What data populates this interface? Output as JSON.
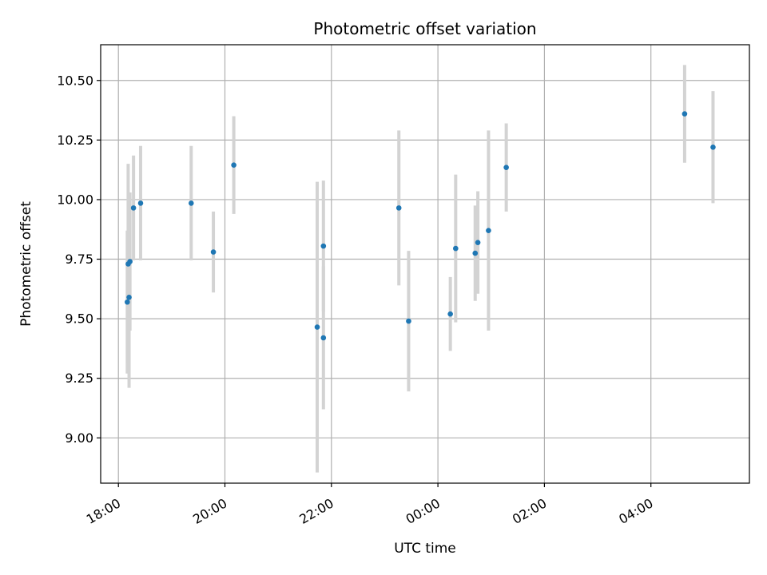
{
  "chart_data": {
    "type": "scatter",
    "title": "Photometric offset variation",
    "xlabel": "UTC time",
    "ylabel": "Photometric offset",
    "grid": true,
    "x_is_time": true,
    "xlim": [
      "17:40",
      "05:51"
    ],
    "ylim": [
      8.81,
      10.65
    ],
    "x_ticks": [
      "18:00",
      "20:00",
      "22:00",
      "00:00",
      "02:00",
      "04:00"
    ],
    "y_ticks": [
      "9.00",
      "9.25",
      "9.50",
      "9.75",
      "10.00",
      "10.25",
      "10.50"
    ],
    "colors": {
      "point": "#1f77b4",
      "errorbar": "#d3d3d3",
      "grid": "#b0b0b0",
      "axes": "#000000"
    },
    "points": [
      {
        "x": "18:10",
        "y": 9.57,
        "err": 0.3
      },
      {
        "x": "18:11",
        "y": 9.73,
        "err": 0.42
      },
      {
        "x": "18:12",
        "y": 9.59,
        "err": 0.38
      },
      {
        "x": "18:13",
        "y": 9.74,
        "err": 0.29
      },
      {
        "x": "18:17",
        "y": 9.965,
        "err": 0.22
      },
      {
        "x": "18:25",
        "y": 9.985,
        "err": 0.24
      },
      {
        "x": "19:22",
        "y": 9.985,
        "err": 0.24
      },
      {
        "x": "19:47",
        "y": 9.78,
        "err": 0.17
      },
      {
        "x": "20:10",
        "y": 10.145,
        "err": 0.205
      },
      {
        "x": "21:44",
        "y": 9.465,
        "err": 0.61
      },
      {
        "x": "21:51",
        "y": 9.805,
        "err": 0.275
      },
      {
        "x": "21:51",
        "y": 9.42,
        "err": 0.3
      },
      {
        "x": "23:16",
        "y": 9.965,
        "err": 0.325
      },
      {
        "x": "23:27",
        "y": 9.49,
        "err": 0.295
      },
      {
        "x": "00:14",
        "y": 9.52,
        "err": 0.155
      },
      {
        "x": "00:20",
        "y": 9.795,
        "err": 0.31
      },
      {
        "x": "00:42",
        "y": 9.775,
        "err": 0.2
      },
      {
        "x": "00:45",
        "y": 9.82,
        "err": 0.215
      },
      {
        "x": "00:57",
        "y": 9.87,
        "err": 0.42
      },
      {
        "x": "01:17",
        "y": 10.135,
        "err": 0.185
      },
      {
        "x": "04:38",
        "y": 10.36,
        "err": 0.205
      },
      {
        "x": "05:10",
        "y": 10.22,
        "err": 0.235
      }
    ]
  }
}
